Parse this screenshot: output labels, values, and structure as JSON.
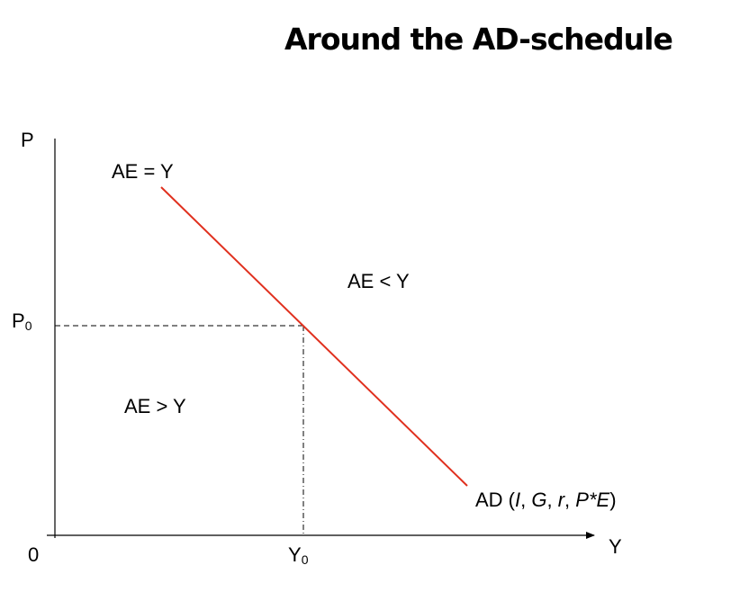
{
  "title": "Around the AD-schedule",
  "axes": {
    "y_label": "P",
    "x_label": "Y",
    "origin_label": "0"
  },
  "equilibrium": {
    "p_label": "P",
    "p_sub": "0",
    "y_label": "Y",
    "y_sub": "0"
  },
  "regions": {
    "equal": "AE = Y",
    "less": "AE < Y",
    "greater": "AE > Y"
  },
  "curve": {
    "label_prefix": "AD (",
    "args": [
      "I",
      "G",
      "r",
      "P*E"
    ],
    "separator": ", ",
    "label_suffix": ")",
    "color": "#e0301e"
  }
}
